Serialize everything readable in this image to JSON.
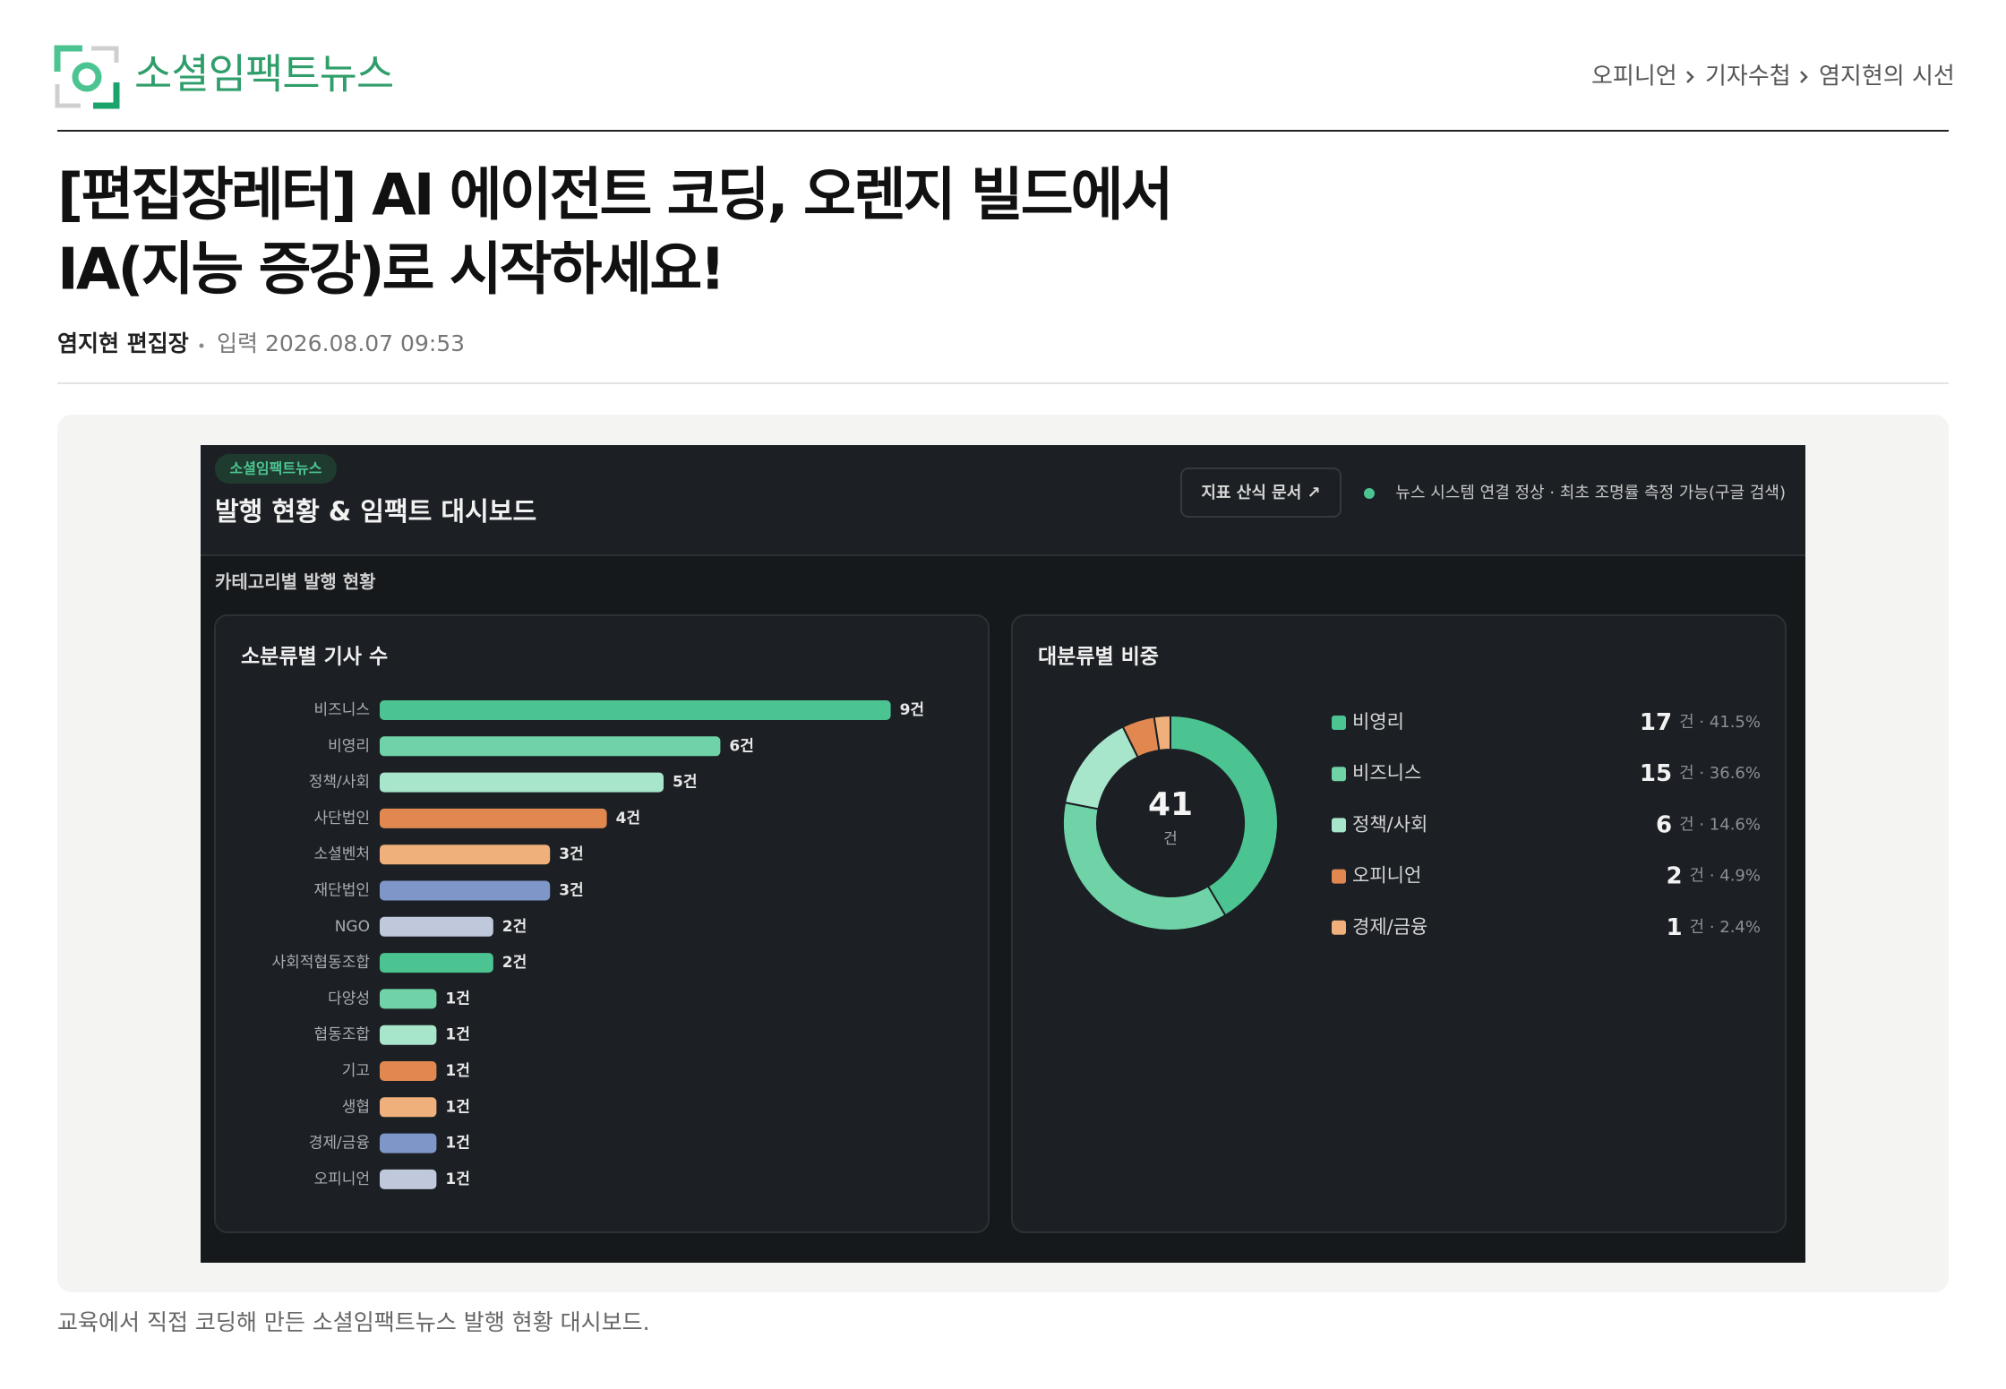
{
  "header": {
    "site_name": "소셜임팩트뉴스",
    "breadcrumb": [
      "오피니언",
      "기자수첩",
      "염지현의 시선"
    ]
  },
  "article": {
    "title_lines": [
      "[편집장레터] AI 에이전트 코딩, 오렌지 빌드에서",
      "IA(지능 증강)로 시작하세요!"
    ],
    "author": "염지현 편집장",
    "published": "입력 2026.08.07 09:53",
    "caption": "교육에서 직접 코딩해 만든 소셜임팩트뉴스 발행 현황 대시보드."
  },
  "dashboard": {
    "badge": "소셜임팩트뉴스",
    "title": "발행 현황 & 임팩트 대시보드",
    "doc_button": "지표 산식 문서 ↗",
    "status": "뉴스 시스템 연결 정상 · 최초 조명률 측정 가능(구글 검색)",
    "section": "카테고리별 발행 현황",
    "bar_chart": {
      "type": "bar",
      "title": "소분류별 기사 수",
      "categories": [
        "비즈니스",
        "비영리",
        "정책/사회",
        "사단법인",
        "소셜벤처",
        "재단법인",
        "NGO",
        "사회적협동조합",
        "다양성",
        "협동조합",
        "기고",
        "생협",
        "경제/금융",
        "오피니언"
      ],
      "values": [
        9,
        6,
        5,
        4,
        3,
        3,
        2,
        2,
        1,
        1,
        1,
        1,
        1,
        1
      ],
      "value_labels": [
        "9건",
        "6건",
        "5건",
        "4건",
        "3건",
        "3건",
        "2건",
        "2건",
        "1건",
        "1건",
        "1건",
        "1건",
        "1건",
        "1건"
      ],
      "colors": [
        "#4cc492",
        "#6fd3a7",
        "#a8e6cc",
        "#e08850",
        "#efb07c",
        "#7f96c9",
        "#c0c8dc",
        "#4cc492",
        "#6fd3a7",
        "#a8e6cc",
        "#e08850",
        "#efb07c",
        "#7f96c9",
        "#c0c8dc"
      ]
    },
    "donut_chart": {
      "type": "donut",
      "title": "대분류별 비중",
      "total": 41,
      "total_unit": "건",
      "categories": [
        "비영리",
        "비즈니스",
        "정책/사회",
        "오피니언",
        "경제/금융"
      ],
      "values": [
        17,
        15,
        6,
        2,
        1
      ],
      "details": [
        "건 · 41.5%",
        "건 · 36.6%",
        "건 · 14.6%",
        "건 · 4.9%",
        "건 · 2.4%"
      ],
      "colors": [
        "#4cc492",
        "#6fd3a7",
        "#a8e6cc",
        "#e08850",
        "#efb07c"
      ]
    }
  }
}
